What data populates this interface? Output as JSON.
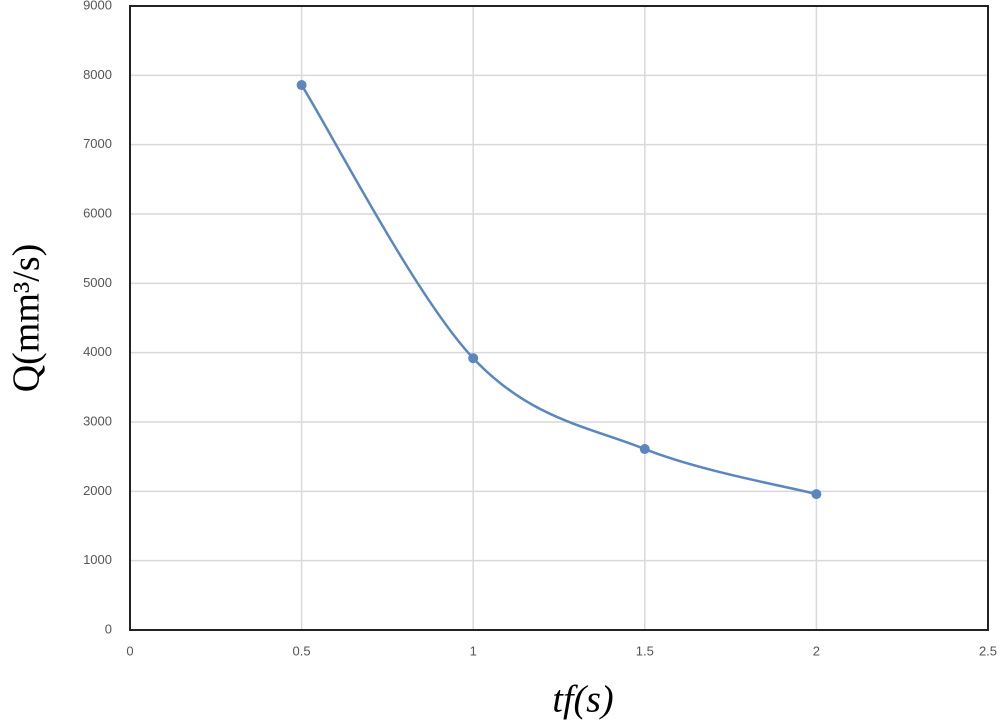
{
  "chart_data": {
    "type": "line",
    "x_label": "tf(s)",
    "y_label": "Q(mm³/s)",
    "x": [
      0.5,
      1,
      1.5,
      2
    ],
    "series": [
      {
        "name": "Q",
        "color": "#5b86c0",
        "values": [
          7860,
          3920,
          2610,
          1960
        ]
      }
    ],
    "xlim": [
      0,
      2.5
    ],
    "xticks": [
      0,
      0.5,
      1,
      1.5,
      2,
      2.5
    ],
    "ylim": [
      0,
      9000
    ],
    "yticks": [
      0,
      1000,
      2000,
      3000,
      4000,
      5000,
      6000,
      7000,
      8000,
      9000
    ],
    "grid": true,
    "smooth": true
  }
}
